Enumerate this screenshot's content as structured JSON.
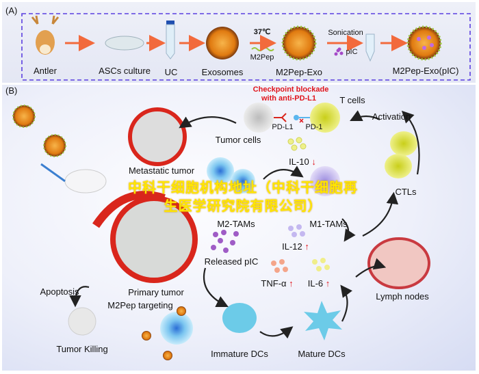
{
  "panel_a": {
    "label": "(A)",
    "steps": [
      "Antler",
      "ASCs culture",
      "UC",
      "Exosomes",
      "M2Pep-Exo",
      "M2Pep-Exo(pIC)"
    ],
    "condition_temp": "37℃",
    "reagent_m2pep": "M2Pep",
    "process_sonication": "Sonication",
    "reagent_pic": "pIC"
  },
  "panel_b": {
    "label": "(B)",
    "checkpoint_line1": "Checkpoint blockade",
    "checkpoint_line2": "with anti-PD-L1",
    "t_cells": "T cells",
    "pd_l1": "PD-L1",
    "pd_1": "PD-1",
    "tumor_cells": "Tumor cells",
    "activation": "Activation",
    "metastatic_tumor": "Metastatic tumor",
    "il10": "IL-10",
    "m2_tams": "M2-TAMs",
    "m1_tams": "M1-TAMs",
    "ctls": "CTLs",
    "il12": "IL-12",
    "released_pic": "Released pIC",
    "tnf": "TNF-α",
    "il6": "IL-6",
    "lymph_nodes": "Lymph nodes",
    "apoptosis": "Apoptosis",
    "primary_tumor": "Primary tumor",
    "m2pep_targeting": "M2Pep targeting",
    "tumor_killing": "Tumor Killing",
    "immature_dcs": "Immature DCs",
    "mature_dcs": "Mature DCs",
    "arrow_up": "↑",
    "arrow_down": "↓"
  },
  "watermark": "中科干细胞机构地址（中科干细胞再生医学研究院有限公司）",
  "colors": {
    "frame_dashed": "#5a3ee0",
    "arrow_orange": "#f26a3c",
    "annotation_red": "#e0151c",
    "watermark": "#ffe600"
  }
}
